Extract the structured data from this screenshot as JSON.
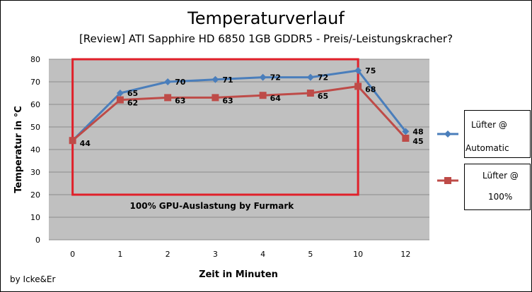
{
  "chart_data": {
    "type": "line",
    "title": "Temperaturverlauf",
    "subtitle": "[Review] ATI Sapphire HD 6850 1GB GDDR5 - Preis/-Leistungskracher?",
    "xlabel": "Zeit in Minuten",
    "ylabel": "Temperatur in °C",
    "categories": [
      "0",
      "1",
      "2",
      "3",
      "4",
      "5",
      "10",
      "12"
    ],
    "ylim": [
      0,
      80
    ],
    "yticks": [
      0,
      10,
      20,
      30,
      40,
      50,
      60,
      70,
      80
    ],
    "grid": true,
    "legend_position": "right",
    "series": [
      {
        "name": "Lüfter @ Automatic",
        "legend_lines": [
          "Lüfter @",
          "Automatic"
        ],
        "color": "#4a7ebb",
        "marker": "diamond",
        "values": [
          44,
          65,
          70,
          71,
          72,
          72,
          75,
          48
        ],
        "labels": [
          null,
          "65",
          "70",
          "71",
          "72",
          "72",
          "75",
          "48"
        ]
      },
      {
        "name": "Lüfter @ 100%",
        "legend_lines": [
          "Lüfter @",
          "100%"
        ],
        "color": "#be4b48",
        "marker": "square",
        "values": [
          44,
          62,
          63,
          63,
          64,
          65,
          68,
          45
        ],
        "labels": [
          "44",
          "62",
          "63",
          "63",
          "64",
          "65",
          "68",
          "45"
        ]
      }
    ],
    "annotation": {
      "text": "100% GPU-Auslastung by Furmark",
      "color": "#e0202a",
      "x_from": "0",
      "x_to": "10",
      "y_from": 20,
      "y_to": 80
    },
    "credit": "by Icke&Er"
  }
}
